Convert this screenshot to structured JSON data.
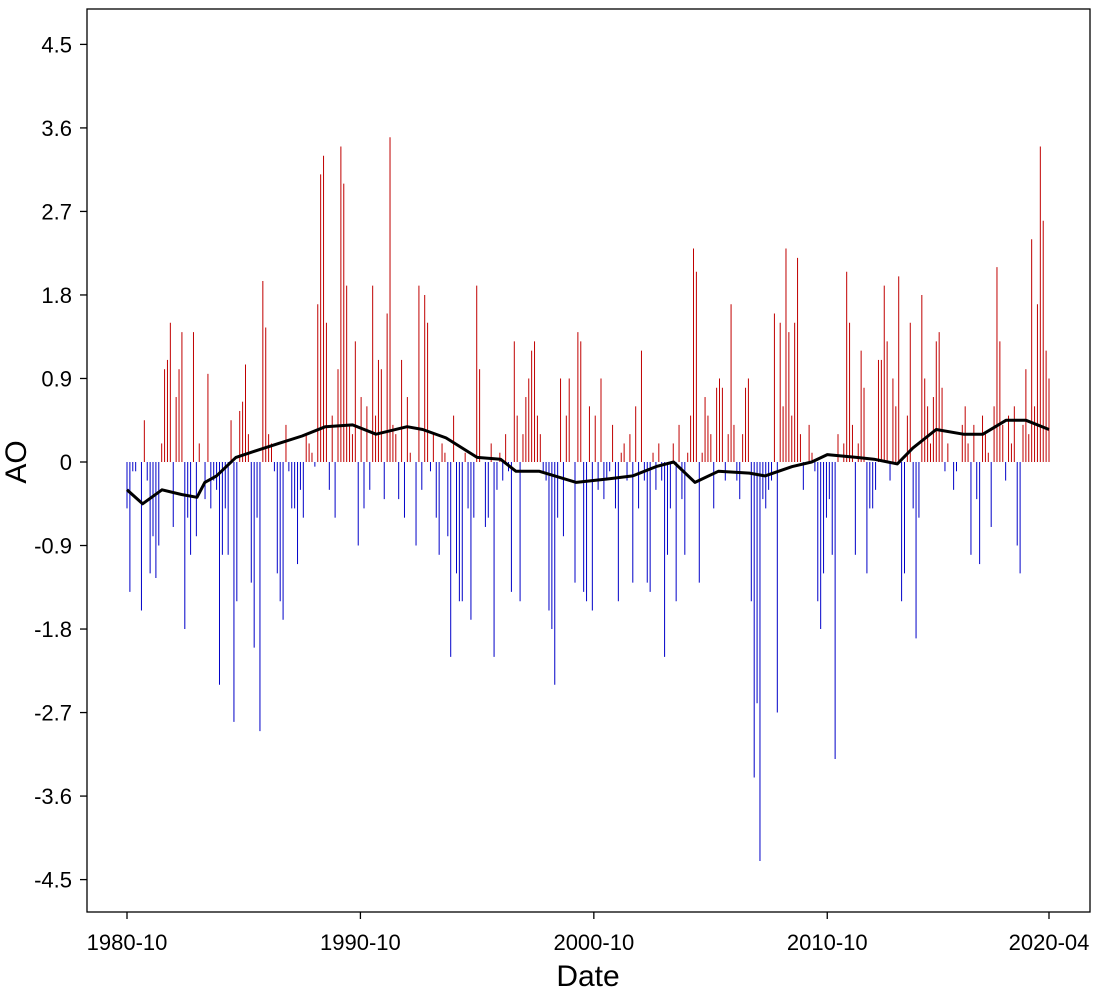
{
  "chart_data": {
    "type": "bar",
    "title": "",
    "xlabel": "Date",
    "ylabel": "AO",
    "ylim": [
      -4.95,
      4.8
    ],
    "y_ticks": [
      "4.5",
      "3.6",
      "2.7",
      "1.8",
      "0.9",
      "0",
      "-0.9",
      "-1.8",
      "-2.7",
      "-3.6",
      "-4.5"
    ],
    "x_ticks": [
      "1980-10",
      "1990-10",
      "2000-10",
      "2010-10",
      "2020-04"
    ],
    "x_range": [
      "1980-10",
      "2020-04"
    ],
    "grid": false,
    "legend": "none",
    "colors": {
      "positive": "#c00000",
      "negative": "#0000c8",
      "trend": "#000000"
    },
    "series": [
      {
        "kind": "monthly-bars",
        "start": "1980-10",
        "end": "2020-04",
        "values": [
          -0.5,
          -1.4,
          -0.1,
          -0.1,
          0.0,
          -1.6,
          0.45,
          -0.2,
          -1.2,
          -0.8,
          -1.25,
          -0.9,
          0.2,
          1.0,
          1.1,
          1.5,
          -0.7,
          0.7,
          1.0,
          1.4,
          -1.8,
          -0.6,
          -1.0,
          1.4,
          -0.8,
          0.2,
          0.0,
          -0.4,
          0.95,
          -0.5,
          -0.2,
          -0.3,
          -2.4,
          -1.0,
          -0.5,
          -1.0,
          0.45,
          -2.8,
          -1.5,
          0.55,
          0.65,
          1.05,
          0.3,
          -1.3,
          -2.0,
          -0.6,
          -2.9,
          1.95,
          1.45,
          0.3,
          0.2,
          -0.1,
          -1.2,
          -1.5,
          -1.7,
          0.4,
          -0.1,
          -0.5,
          -0.5,
          -1.1,
          -0.3,
          -0.6,
          0.3,
          0.2,
          0.1,
          -0.05,
          1.7,
          3.1,
          3.3,
          1.5,
          -0.3,
          0.5,
          -0.6,
          1.0,
          3.4,
          3.0,
          1.9,
          0.4,
          0.3,
          1.3,
          -0.9,
          0.7,
          -0.5,
          0.6,
          -0.3,
          1.9,
          0.5,
          1.1,
          1.0,
          -0.4,
          1.6,
          3.5,
          0.4,
          0.3,
          -0.4,
          1.1,
          -0.6,
          0.7,
          0.1,
          0.0,
          -0.9,
          1.9,
          -0.3,
          1.8,
          1.5,
          -0.1,
          0.3,
          -0.6,
          -1.0,
          0.2,
          0.1,
          -0.8,
          -2.1,
          0.5,
          -1.2,
          -1.5,
          -1.5,
          0.1,
          -0.5,
          -1.7,
          -0.6,
          1.9,
          1.0,
          0.0,
          -0.7,
          -0.6,
          0.2,
          -2.1,
          -0.3,
          0.1,
          -0.2,
          0.3,
          -0.1,
          -1.4,
          1.3,
          0.5,
          -1.5,
          0.3,
          0.7,
          0.9,
          1.2,
          1.3,
          0.5,
          0.3,
          -0.1,
          -0.2,
          -1.6,
          -1.8,
          -2.4,
          -0.6,
          0.9,
          -0.8,
          0.5,
          0.9,
          0.0,
          -1.3,
          1.4,
          1.3,
          -1.4,
          -1.5,
          0.6,
          -1.6,
          0.5,
          -0.3,
          0.9,
          -0.4,
          -0.2,
          -0.1,
          0.4,
          -0.5,
          -1.5,
          0.1,
          0.2,
          -0.2,
          0.3,
          -1.3,
          0.6,
          -0.5,
          1.2,
          -0.2,
          -1.3,
          -1.4,
          0.1,
          -0.3,
          0.2,
          -0.2,
          -2.1,
          -1.0,
          -0.5,
          0.2,
          -1.5,
          0.4,
          -0.4,
          -1.0,
          0.1,
          0.5,
          2.3,
          2.05,
          -1.3,
          0.1,
          0.7,
          0.5,
          0.3,
          -0.5,
          0.8,
          0.9,
          0.8,
          -0.2,
          0.3,
          1.7,
          0.4,
          -0.2,
          -0.4,
          0.3,
          0.8,
          0.9,
          -1.5,
          -3.4,
          -2.6,
          -4.3,
          -0.4,
          -0.5,
          -0.3,
          -0.2,
          1.6,
          -2.7,
          1.5,
          0.6,
          2.3,
          1.4,
          0.5,
          1.5,
          2.2,
          0.3,
          -0.3,
          0.0,
          0.4,
          0.1,
          -0.1,
          -1.5,
          -1.8,
          -1.2,
          -0.6,
          -0.4,
          -1.0,
          -3.2,
          0.3,
          0.0,
          0.2,
          2.05,
          1.5,
          0.4,
          -1.0,
          0.2,
          1.2,
          0.8,
          -1.2,
          -0.5,
          -0.5,
          -0.3,
          1.1,
          1.1,
          1.9,
          1.3,
          -0.2,
          0.9,
          0.6,
          2.0,
          -1.5,
          -1.2,
          0.5,
          1.5,
          -0.5,
          -1.9,
          -0.6,
          1.8,
          0.9,
          0.6,
          0.2,
          0.7,
          1.3,
          1.4,
          0.8,
          -0.1,
          0.2,
          0.0,
          -0.3,
          -0.1,
          0.0,
          0.4,
          0.6,
          0.2,
          -1.0,
          0.4,
          -0.4,
          -1.1,
          0.5,
          0.3,
          0.1,
          -0.7,
          0.6,
          2.1,
          1.3,
          0.4,
          -0.2,
          0.5,
          0.2,
          0.6,
          -0.9,
          -1.2,
          0.4,
          1.0,
          0.3,
          2.4,
          0.6,
          1.7,
          3.4,
          2.6,
          1.2,
          0.9
        ]
      },
      {
        "kind": "running-mean-line",
        "x": [
          "1980-10",
          "1981-06",
          "1982-04",
          "1983-02",
          "1983-10",
          "1984-02",
          "1984-08",
          "1985-06",
          "1986-04",
          "1987-04",
          "1988-04",
          "1989-04",
          "1990-06",
          "1991-06",
          "1992-10",
          "1993-06",
          "1994-06",
          "1995-10",
          "1996-10",
          "1997-06",
          "1998-06",
          "2000-01",
          "2001-06",
          "2002-06",
          "2003-06",
          "2004-03",
          "2005-02",
          "2006-02",
          "2007-06",
          "2008-02",
          "2009-04",
          "2010-02",
          "2010-10",
          "2012-01",
          "2012-10",
          "2013-10",
          "2014-06",
          "2015-06",
          "2016-08",
          "2017-06",
          "2018-06",
          "2019-04",
          "2020-04"
        ],
        "y": [
          -0.3,
          -0.45,
          -0.3,
          -0.35,
          -0.38,
          -0.22,
          -0.15,
          0.05,
          0.12,
          0.2,
          0.28,
          0.38,
          0.4,
          0.3,
          0.38,
          0.35,
          0.26,
          0.05,
          0.03,
          -0.1,
          -0.1,
          -0.22,
          -0.18,
          -0.15,
          -0.05,
          0.0,
          -0.22,
          -0.1,
          -0.12,
          -0.15,
          -0.05,
          0.0,
          0.08,
          0.05,
          0.03,
          -0.02,
          0.15,
          0.35,
          0.3,
          0.3,
          0.45,
          0.45,
          0.35
        ]
      }
    ]
  }
}
